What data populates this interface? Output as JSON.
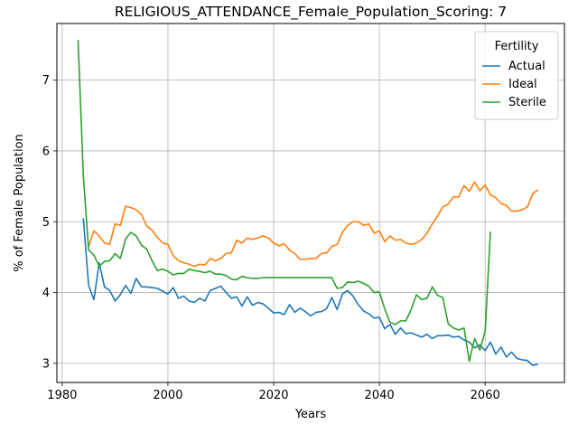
{
  "chart_data": {
    "type": "line",
    "title": "RELIGIOUS_ATTENDANCE_Female_Population_Scoring: 7",
    "xlabel": "Years",
    "ylabel": "% of Female Population",
    "xlim": [
      1979,
      2075
    ],
    "ylim": [
      2.73,
      7.8
    ],
    "xticks": [
      1980,
      2000,
      2020,
      2040,
      2060
    ],
    "yticks": [
      3,
      4,
      5,
      6,
      7
    ],
    "grid": true,
    "legend": {
      "title": "Fertility",
      "placement": "top-right"
    },
    "colors": {
      "Actual": "#1f77b4",
      "Ideal": "#ff7f0e",
      "Sterile": "#2ca02c"
    },
    "series": [
      {
        "name": "Actual",
        "x": [
          1984,
          1985,
          1986,
          1987,
          1988,
          1989,
          1990,
          1991,
          1992,
          1993,
          1994,
          1995,
          1996,
          1997,
          1998,
          1999,
          2000,
          2001,
          2002,
          2003,
          2004,
          2005,
          2006,
          2007,
          2008,
          2009,
          2010,
          2011,
          2012,
          2013,
          2014,
          2015,
          2016,
          2017,
          2018,
          2019,
          2020,
          2021,
          2022,
          2023,
          2024,
          2025,
          2026,
          2027,
          2028,
          2029,
          2030,
          2031,
          2032,
          2033,
          2034,
          2035,
          2036,
          2037,
          2038,
          2039,
          2040,
          2041,
          2042,
          2043,
          2044,
          2045,
          2046,
          2047,
          2048,
          2049,
          2050,
          2051,
          2052,
          2053,
          2054,
          2055,
          2056,
          2057,
          2058,
          2059,
          2060,
          2061,
          2062,
          2063,
          2064,
          2065,
          2066,
          2067,
          2068,
          2069,
          2070
        ],
        "values": [
          5.05,
          4.1,
          3.9,
          4.42,
          4.08,
          4.03,
          3.88,
          3.97,
          4.1,
          3.99,
          4.2,
          4.08,
          4.08,
          4.07,
          4.06,
          4.02,
          3.98,
          4.07,
          3.92,
          3.95,
          3.88,
          3.86,
          3.92,
          3.88,
          4.03,
          4.06,
          4.09,
          4.0,
          3.92,
          3.94,
          3.81,
          3.94,
          3.82,
          3.86,
          3.84,
          3.78,
          3.71,
          3.72,
          3.69,
          3.83,
          3.72,
          3.78,
          3.73,
          3.67,
          3.72,
          3.73,
          3.77,
          3.93,
          3.76,
          3.98,
          4.03,
          3.95,
          3.83,
          3.74,
          3.7,
          3.64,
          3.65,
          3.49,
          3.55,
          3.41,
          3.5,
          3.42,
          3.43,
          3.4,
          3.37,
          3.41,
          3.35,
          3.39,
          3.39,
          3.4,
          3.37,
          3.38,
          3.33,
          3.3,
          3.22,
          3.26,
          3.18,
          3.3,
          3.13,
          3.23,
          3.09,
          3.16,
          3.07,
          3.05,
          3.04,
          2.97,
          2.99
        ]
      },
      {
        "name": "Ideal",
        "x": [
          1985,
          1986,
          1987,
          1988,
          1989,
          1990,
          1991,
          1992,
          1993,
          1994,
          1995,
          1996,
          1997,
          1998,
          1999,
          2000,
          2001,
          2002,
          2003,
          2004,
          2005,
          2006,
          2007,
          2008,
          2009,
          2010,
          2011,
          2012,
          2013,
          2014,
          2015,
          2016,
          2017,
          2018,
          2019,
          2020,
          2021,
          2022,
          2023,
          2024,
          2025,
          2026,
          2027,
          2028,
          2029,
          2030,
          2031,
          2032,
          2033,
          2034,
          2035,
          2036,
          2037,
          2038,
          2039,
          2040,
          2041,
          2042,
          2043,
          2044,
          2045,
          2046,
          2047,
          2048,
          2049,
          2050,
          2051,
          2052,
          2053,
          2054,
          2055,
          2056,
          2057,
          2058,
          2059,
          2060,
          2061,
          2062,
          2063,
          2064,
          2065,
          2066,
          2067,
          2068,
          2069,
          2070
        ],
        "values": [
          4.65,
          4.87,
          4.8,
          4.7,
          4.68,
          4.97,
          4.95,
          5.22,
          5.2,
          5.17,
          5.1,
          4.94,
          4.88,
          4.78,
          4.7,
          4.68,
          4.52,
          4.45,
          4.42,
          4.4,
          4.37,
          4.4,
          4.39,
          4.48,
          4.45,
          4.48,
          4.55,
          4.56,
          4.74,
          4.7,
          4.77,
          4.75,
          4.77,
          4.8,
          4.77,
          4.7,
          4.66,
          4.69,
          4.6,
          4.55,
          4.47,
          4.47,
          4.48,
          4.48,
          4.55,
          4.56,
          4.65,
          4.68,
          4.85,
          4.95,
          5.0,
          5.0,
          4.95,
          4.97,
          4.84,
          4.87,
          4.72,
          4.8,
          4.74,
          4.75,
          4.7,
          4.68,
          4.7,
          4.75,
          4.84,
          4.97,
          5.08,
          5.21,
          5.25,
          5.35,
          5.35,
          5.51,
          5.43,
          5.56,
          5.44,
          5.52,
          5.38,
          5.34,
          5.26,
          5.23,
          5.15,
          5.15,
          5.17,
          5.21,
          5.4,
          5.45
        ]
      },
      {
        "name": "Sterile",
        "x": [
          1983,
          1984,
          1985,
          1986,
          1987,
          1988,
          1989,
          1990,
          1991,
          1992,
          1993,
          1994,
          1995,
          1996,
          1997,
          1998,
          1999,
          2000,
          2001,
          2002,
          2003,
          2004,
          2005,
          2006,
          2007,
          2008,
          2009,
          2010,
          2011,
          2012,
          2013,
          2014,
          2015,
          2016,
          2017,
          2018,
          2019,
          2020,
          2021,
          2022,
          2023,
          2024,
          2025,
          2026,
          2027,
          2028,
          2029,
          2030,
          2031,
          2032,
          2033,
          2034,
          2035,
          2036,
          2037,
          2038,
          2039,
          2040,
          2041,
          2042,
          2043,
          2044,
          2045,
          2046,
          2047,
          2048,
          2049,
          2050,
          2051,
          2052,
          2053,
          2054,
          2055,
          2056,
          2057,
          2058,
          2059,
          2060,
          2061
        ],
        "values": [
          7.57,
          5.65,
          4.6,
          4.53,
          4.37,
          4.44,
          4.45,
          4.55,
          4.48,
          4.76,
          4.85,
          4.8,
          4.67,
          4.61,
          4.45,
          4.31,
          4.33,
          4.3,
          4.25,
          4.27,
          4.27,
          4.33,
          4.31,
          4.3,
          4.28,
          4.3,
          4.26,
          4.26,
          4.24,
          4.19,
          4.18,
          4.23,
          4.21,
          4.2,
          4.2,
          4.21,
          4.21,
          4.21,
          4.21,
          4.21,
          4.21,
          4.21,
          4.21,
          4.21,
          4.21,
          4.21,
          4.21,
          4.21,
          4.21,
          4.06,
          4.07,
          4.15,
          4.14,
          4.16,
          4.13,
          4.09,
          4.0,
          4.01,
          3.77,
          3.58,
          3.55,
          3.6,
          3.6,
          3.76,
          3.97,
          3.9,
          3.92,
          4.08,
          3.96,
          3.93,
          3.56,
          3.5,
          3.47,
          3.5,
          3.03,
          3.35,
          3.19,
          3.45,
          4.86
        ]
      }
    ]
  }
}
